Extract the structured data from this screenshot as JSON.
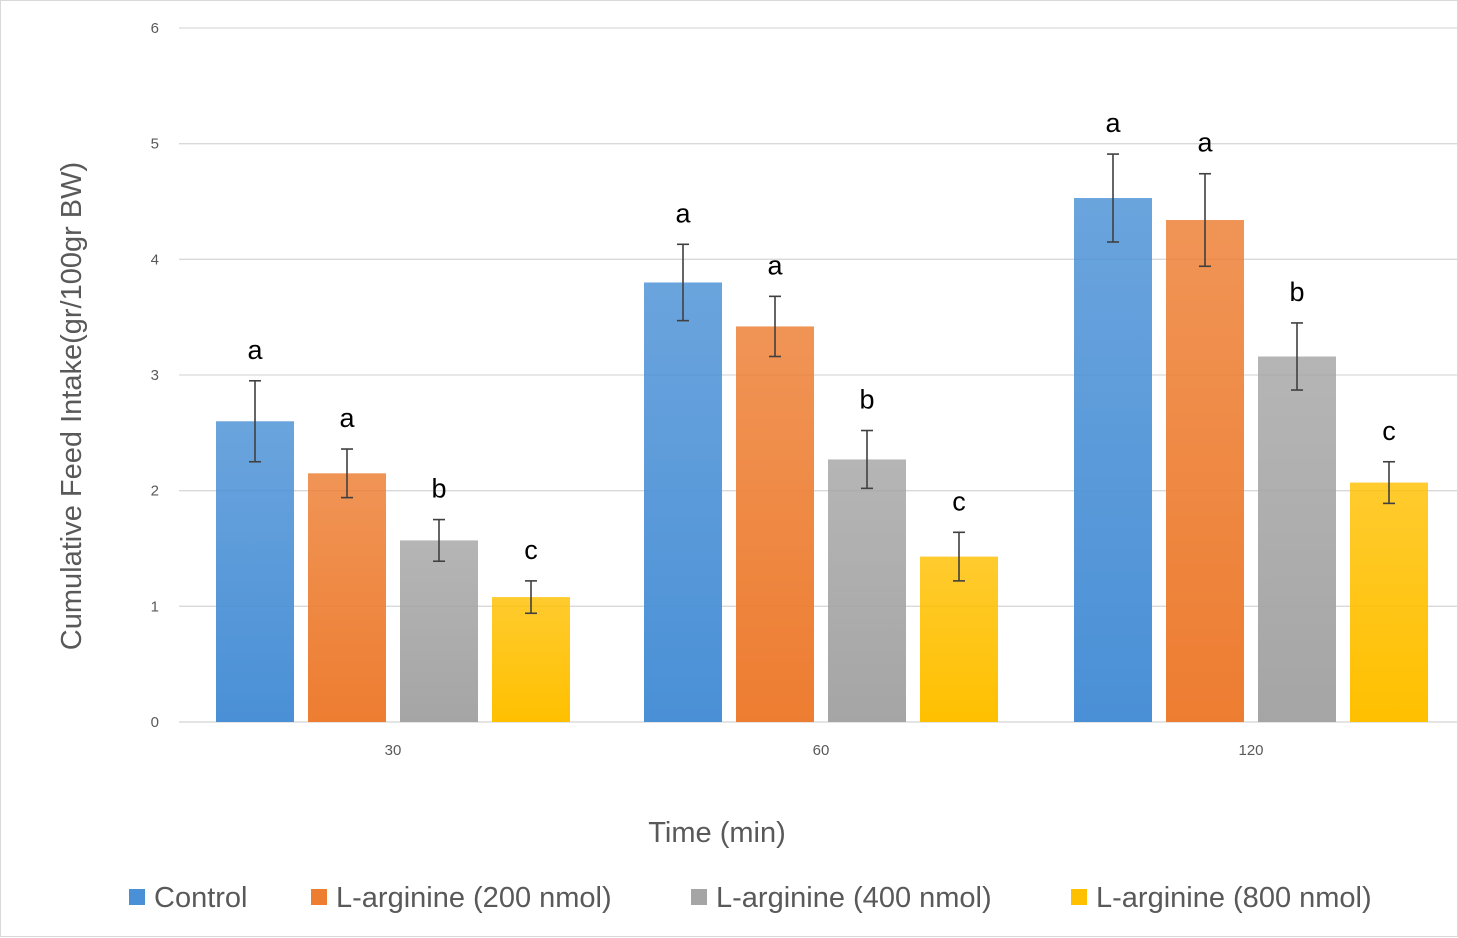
{
  "chart_data": {
    "type": "bar",
    "title": "",
    "xlabel": "Time (min)",
    "ylabel": "Cumulative Feed Intake(gr/100gr BW)",
    "ylim": [
      0,
      6
    ],
    "yticks": [
      "0",
      "1",
      "2",
      "3",
      "4",
      "5",
      "6"
    ],
    "categories": [
      "30",
      "60",
      "120"
    ],
    "grid": true,
    "legend_position": "bottom",
    "series": [
      {
        "name": "Control",
        "color": "#4A90D6",
        "values": [
          2.6,
          3.8,
          4.53
        ],
        "errors": [
          0.35,
          0.33,
          0.38
        ],
        "labels": [
          "a",
          "a",
          "a"
        ]
      },
      {
        "name": "L-arginine (200 nmol)",
        "color": "#ED7D31",
        "values": [
          2.15,
          3.42,
          4.34
        ],
        "errors": [
          0.21,
          0.26,
          0.4
        ],
        "labels": [
          "a",
          "a",
          "a"
        ]
      },
      {
        "name": "L-arginine (400 nmol)",
        "color": "#A5A5A5",
        "values": [
          1.57,
          2.27,
          3.16
        ],
        "errors": [
          0.18,
          0.25,
          0.29
        ],
        "labels": [
          "b",
          "b",
          "b"
        ]
      },
      {
        "name": "L-arginine (800 nmol)",
        "color": "#FFC000",
        "values": [
          1.08,
          1.43,
          2.07
        ],
        "errors": [
          0.14,
          0.21,
          0.18
        ],
        "labels": [
          "c",
          "c",
          "c"
        ]
      }
    ]
  }
}
